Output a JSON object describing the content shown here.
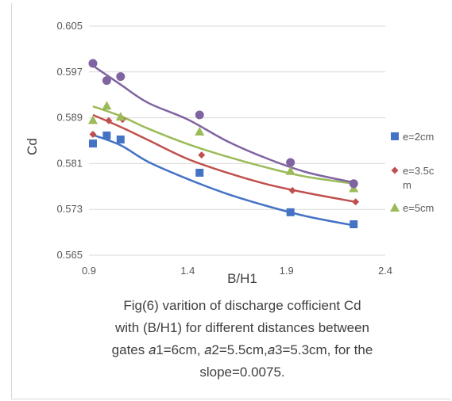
{
  "chart_data": {
    "type": "scatter",
    "xlabel": "B/H1",
    "ylabel": "Cd",
    "xlim": [
      0.9,
      2.4
    ],
    "ylim": [
      0.565,
      0.605
    ],
    "x_ticks": [
      "0.9",
      "1.4",
      "1.9",
      "2.4"
    ],
    "y_ticks": [
      "0.605",
      "0.597",
      "0.589",
      "0.581",
      "0.573",
      "0.565"
    ],
    "grid": "horizontal",
    "legend_position": "right",
    "trendline": "power",
    "series": [
      {
        "name": "e=2cm",
        "color": "#4472c4",
        "marker": "square",
        "x": [
          0.92,
          0.99,
          1.06,
          1.46,
          1.92,
          2.24
        ],
        "y": [
          0.5845,
          0.5859,
          0.5852,
          0.5794,
          0.5725,
          0.5704
        ],
        "trend_x": [
          0.92,
          1.06,
          1.2,
          1.4,
          1.6,
          1.8,
          2.0,
          2.24
        ],
        "trend_y": [
          0.586,
          0.5842,
          0.5813,
          0.5783,
          0.5757,
          0.5736,
          0.5718,
          0.5702
        ]
      },
      {
        "name": "e=3.5cm",
        "color": "#c0504d",
        "marker": "diamond",
        "x": [
          0.92,
          1.0,
          1.07,
          1.47,
          1.93,
          2.25
        ],
        "y": [
          0.5861,
          0.5885,
          0.5887,
          0.5825,
          0.5763,
          0.5743
        ],
        "trend_x": [
          0.92,
          1.06,
          1.2,
          1.4,
          1.6,
          1.8,
          2.0,
          2.25
        ],
        "trend_y": [
          0.5895,
          0.5874,
          0.5851,
          0.5818,
          0.5794,
          0.5774,
          0.5759,
          0.5743
        ]
      },
      {
        "name": "e=5cm",
        "color": "#9bbb59",
        "marker": "triangle",
        "x": [
          0.92,
          0.99,
          1.06,
          1.46,
          1.92,
          2.24
        ],
        "y": [
          0.5886,
          0.5911,
          0.5892,
          0.5866,
          0.5797,
          0.5767
        ],
        "trend_x": [
          0.92,
          1.06,
          1.2,
          1.4,
          1.6,
          1.8,
          2.0,
          2.24
        ],
        "trend_y": [
          0.591,
          0.5893,
          0.5871,
          0.5844,
          0.5822,
          0.5803,
          0.5787,
          0.5775
        ]
      },
      {
        "name": "",
        "color": "#8064a2",
        "marker": "circle",
        "x": [
          0.92,
          0.99,
          1.06,
          1.46,
          1.92,
          2.24
        ],
        "y": [
          0.5985,
          0.5955,
          0.5962,
          0.5895,
          0.5812,
          0.5775
        ],
        "trend_x": [
          0.92,
          1.06,
          1.2,
          1.4,
          1.6,
          1.8,
          2.0,
          2.24
        ],
        "trend_y": [
          0.5981,
          0.5948,
          0.5916,
          0.5887,
          0.5849,
          0.5819,
          0.5795,
          0.5777
        ]
      }
    ]
  },
  "legend": [
    {
      "label_lines": [
        "e=2cm"
      ]
    },
    {
      "label_lines": [
        "e=3.5c",
        "m"
      ]
    },
    {
      "label_lines": [
        "e=5cm"
      ]
    }
  ],
  "caption": {
    "lines": [
      "Fig(6) varition of discharge cofficient Cd",
      "with (B/H1) for different distances between",
      "gates 𝑎1=6cm,  𝑎2=5.5cm,𝑎3=5.3cm,  for the",
      "slope=0.0075."
    ]
  }
}
